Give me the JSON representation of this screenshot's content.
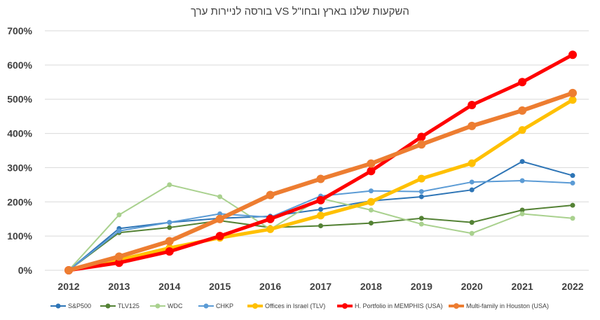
{
  "chart_data": {
    "type": "line",
    "title": "השקעות שלנו בארץ ובחו\"ל VS בורסה לניירות ערך",
    "xlabel": "",
    "ylabel": "",
    "ylim": [
      0,
      700
    ],
    "y_tick_values": [
      0,
      100,
      200,
      300,
      400,
      500,
      600,
      700
    ],
    "y_tick_labels": [
      "0%",
      "100%",
      "200%",
      "300%",
      "400%",
      "500%",
      "600%",
      "700%"
    ],
    "categories": [
      "2012",
      "2013",
      "2014",
      "2015",
      "2016",
      "2017",
      "2018",
      "2019",
      "2020",
      "2021",
      "2022"
    ],
    "grid": true,
    "legend_position": "bottom",
    "series": [
      {
        "name": "S&P500",
        "color": "#2e75b6",
        "width": 2,
        "marker": 3.5,
        "values": [
          0,
          122,
          140,
          152,
          158,
          178,
          203,
          215,
          235,
          318,
          277
        ]
      },
      {
        "name": "TLV125",
        "color": "#548235",
        "width": 2,
        "marker": 3.5,
        "values": [
          0,
          110,
          125,
          145,
          125,
          130,
          138,
          152,
          140,
          176,
          190
        ]
      },
      {
        "name": "WDC",
        "color": "#a9d18e",
        "width": 2,
        "marker": 3.5,
        "values": [
          0,
          162,
          250,
          215,
          120,
          210,
          176,
          135,
          108,
          165,
          152
        ]
      },
      {
        "name": "CHKP",
        "color": "#5b9bd5",
        "width": 2,
        "marker": 3.5,
        "values": [
          0,
          115,
          140,
          165,
          155,
          217,
          232,
          230,
          258,
          262,
          255
        ]
      },
      {
        "name": "Offices in Israel (TLV)",
        "color": "#ffc000",
        "width": 5,
        "marker": 5.5,
        "values": [
          0,
          30,
          65,
          95,
          120,
          160,
          200,
          268,
          313,
          410,
          498
        ]
      },
      {
        "name": "H. Portfolio in MEMPHIS (USA)",
        "color": "#ff0000",
        "width": 5,
        "marker": 6,
        "values": [
          0,
          22,
          55,
          100,
          150,
          205,
          290,
          390,
          483,
          550,
          630
        ]
      },
      {
        "name": "Multi-family in Houston (USA)",
        "color": "#ed7d31",
        "width": 6,
        "marker": 6,
        "values": [
          0,
          40,
          85,
          150,
          220,
          267,
          312,
          368,
          422,
          467,
          518
        ]
      }
    ]
  }
}
